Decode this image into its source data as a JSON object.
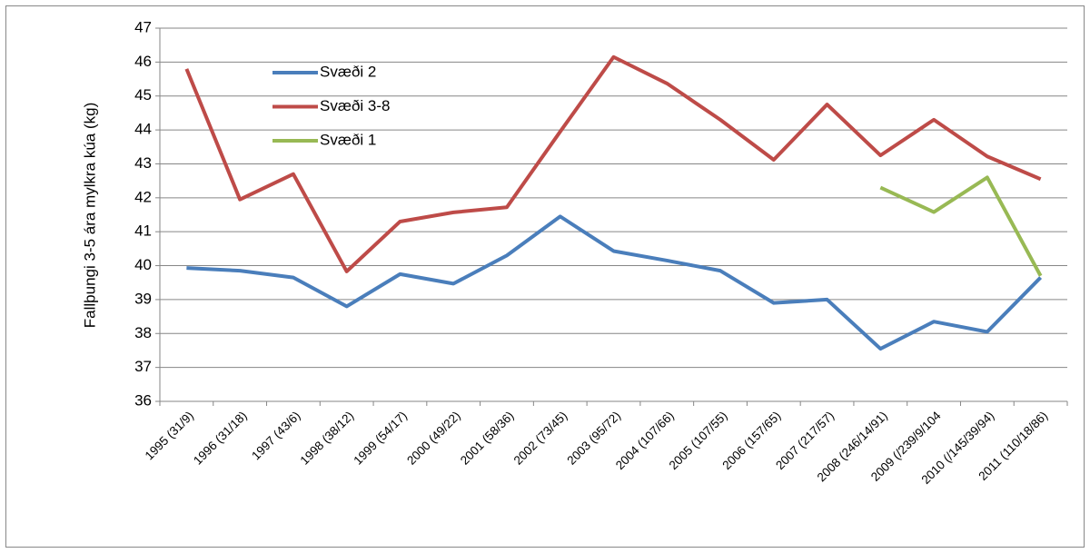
{
  "chart_data": {
    "type": "line",
    "y_label": "Fallþungi 3-5 ára mylkra kúa (kg)",
    "categories": [
      "1995 (31/9)",
      "1996 (31/18)",
      "1997  (43/6)",
      "1998 (38/12)",
      "1999 (54/17)",
      "2000 (49/22)",
      "2001 (58/36)",
      "2002 (73/45)",
      "2003 (95/72)",
      "2004 (107/66)",
      "2005 (107/55)",
      "2006 (157/65)",
      "2007 (217/57)",
      "2008 (246/14/91)",
      "2009 (/239/9/104",
      "2010 (/145/39/94)",
      "2011 (110/18/86)"
    ],
    "series": [
      {
        "name": "Svæði 2",
        "color": "#4a7ebb",
        "values": [
          39.93,
          39.85,
          39.65,
          38.8,
          39.75,
          39.47,
          40.3,
          41.45,
          40.43,
          40.15,
          39.85,
          38.9,
          39.0,
          37.55,
          38.35,
          38.05,
          39.65
        ]
      },
      {
        "name": "Svæði 3-8",
        "color": "#be4b48",
        "values": [
          45.8,
          41.95,
          42.7,
          39.83,
          41.3,
          41.57,
          41.72,
          43.95,
          46.15,
          45.37,
          44.3,
          43.12,
          44.75,
          43.25,
          44.3,
          43.22,
          42.55
        ]
      },
      {
        "name": "Svæði 1",
        "color": "#98b954",
        "values": [
          null,
          null,
          null,
          null,
          null,
          null,
          null,
          null,
          null,
          null,
          null,
          null,
          null,
          42.3,
          41.58,
          42.6,
          39.7
        ]
      }
    ],
    "ylim": [
      36,
      47
    ],
    "yticks": [
      36,
      37,
      38,
      39,
      40,
      41,
      42,
      43,
      44,
      45,
      46,
      47
    ],
    "grid": true,
    "legend": "top-left"
  }
}
